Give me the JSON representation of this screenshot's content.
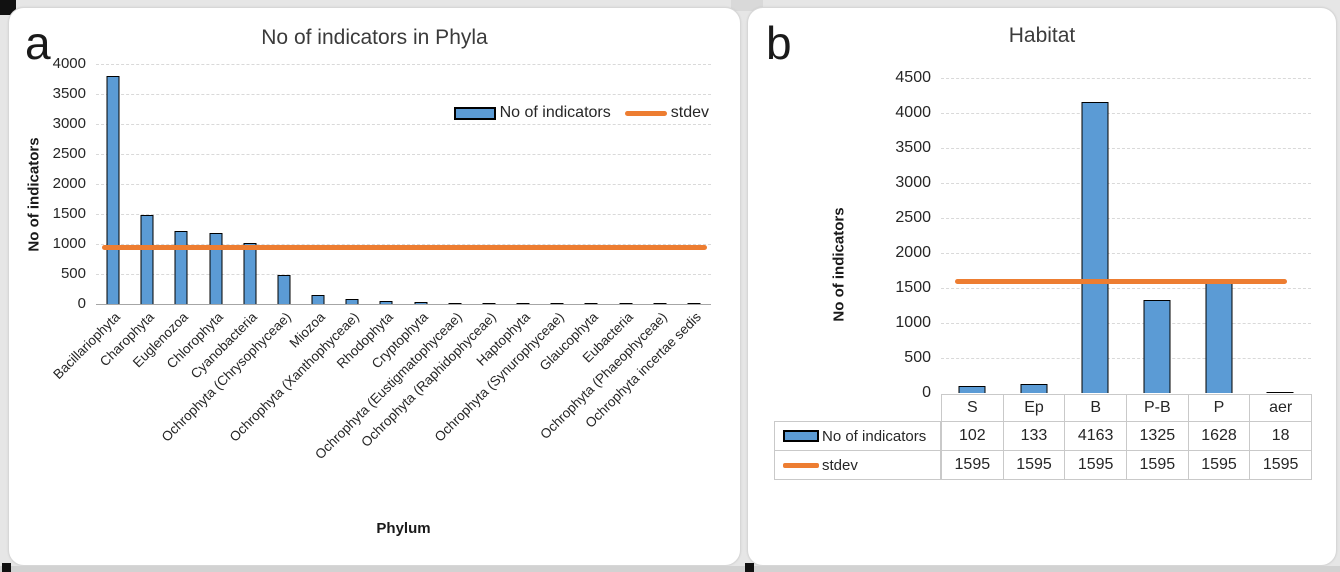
{
  "panels": {
    "a": {
      "letter": "a"
    },
    "b": {
      "letter": "b"
    }
  },
  "colors": {
    "bar_fill": "#5B9BD5",
    "bar_border": "#000000",
    "stdev_line": "#ED7D31",
    "gridline": "#D9D9D9",
    "axis_line": "#A6A6A6"
  },
  "chart_data": [
    {
      "panel": "a",
      "type": "bar",
      "title": "No of indicators in Phyla",
      "xlabel": "Phylum",
      "ylabel": "No of indicators",
      "ylim": [
        0,
        4000
      ],
      "ytick_step": 500,
      "grid": true,
      "legend": [
        "No of indicators",
        "stdev"
      ],
      "legend_position": "inside-top-right",
      "categories": [
        "Bacillariophyta",
        "Charophyta",
        "Euglenozoa",
        "Chlorophyta",
        "Cyanobacteria",
        "Ochrophyta (Chrysophyceae)",
        "Miozoa",
        "Ochrophyta (Xanthophyceae)",
        "Rhodophyta",
        "Cryptophyta",
        "Ochrophyta (Eustigmatophyceae)",
        "Ochrophyta (Raphidophyceae)",
        "Haptophyta",
        "Ochrophyta (Synurophyceae)",
        "Glaucophyta",
        "Eubacteria",
        "Ochrophyta (Phaeophyceae)",
        "Ochrophyta incertae sedis"
      ],
      "series": [
        {
          "name": "No of indicators",
          "kind": "bar",
          "values": [
            3800,
            1480,
            1210,
            1190,
            1010,
            490,
            150,
            80,
            55,
            30,
            22,
            18,
            14,
            12,
            10,
            8,
            6,
            5
          ]
        },
        {
          "name": "stdev",
          "kind": "line",
          "value": 950
        }
      ]
    },
    {
      "panel": "b",
      "type": "bar",
      "title": "Habitat",
      "xlabel": "",
      "ylabel": "No of indicators",
      "ylim": [
        0,
        4500
      ],
      "ytick_step": 500,
      "grid": true,
      "categories": [
        "S",
        "Ep",
        "B",
        "P-B",
        "P",
        "aer"
      ],
      "series": [
        {
          "name": "No of indicators",
          "kind": "bar",
          "values": [
            102,
            133,
            4163,
            1325,
            1628,
            18
          ]
        },
        {
          "name": "stdev",
          "kind": "line",
          "values": [
            1595,
            1595,
            1595,
            1595,
            1595,
            1595
          ]
        }
      ],
      "data_table": {
        "rows": [
          {
            "label": "No of indicators",
            "swatch": "bar",
            "values": [
              "102",
              "133",
              "4163",
              "1325",
              "1628",
              "18"
            ]
          },
          {
            "label": "stdev",
            "swatch": "line",
            "values": [
              "1595",
              "1595",
              "1595",
              "1595",
              "1595",
              "1595"
            ]
          }
        ]
      }
    }
  ]
}
